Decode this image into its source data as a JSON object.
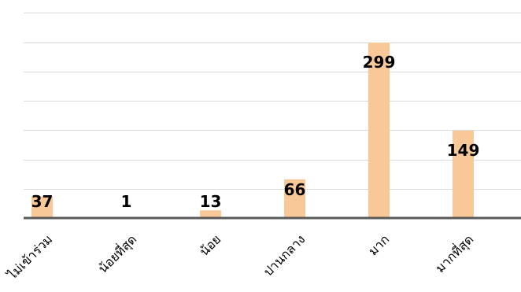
{
  "chart_data": {
    "type": "bar",
    "title": "",
    "xlabel": "",
    "ylabel": "",
    "categories": [
      "ไม่เข้าร่วม",
      "น้อยที่สุด",
      "น้อย",
      "ปานกลาง",
      "มาก",
      "มากที่สุด"
    ],
    "values": [
      37,
      1,
      13,
      66,
      299,
      149
    ],
    "data_labels": [
      "37",
      "1",
      "13",
      "66",
      "299",
      "149"
    ],
    "ylim": [
      0,
      350
    ],
    "grid_step": 50,
    "grid": true,
    "legend": "none",
    "colors": {
      "bar": "#f8c898",
      "grid": "#d9d9d9",
      "axis": "#595959",
      "text": "#000000"
    }
  }
}
